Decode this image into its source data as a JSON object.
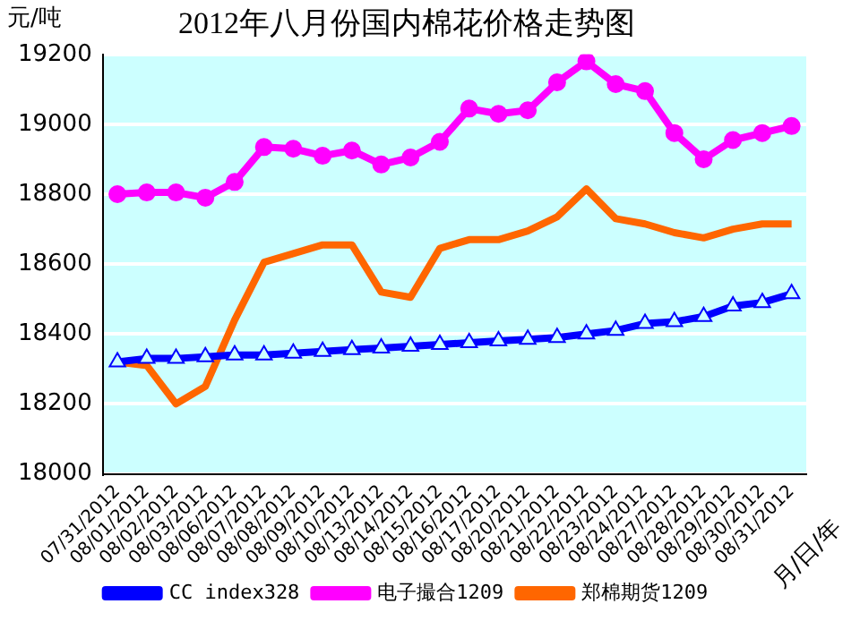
{
  "chart_data": {
    "type": "line",
    "title": "2012年八月份国内棉花价格走势图",
    "ylabel": "元/吨",
    "xlabel": "月/日/年",
    "categories": [
      "07/31/2012",
      "08/01/2012",
      "08/02/2012",
      "08/03/2012",
      "08/06/2012",
      "08/07/2012",
      "08/08/2012",
      "08/09/2012",
      "08/10/2012",
      "08/13/2012",
      "08/14/2012",
      "08/15/2012",
      "08/16/2012",
      "08/17/2012",
      "08/20/2012",
      "08/21/2012",
      "08/22/2012",
      "08/23/2012",
      "08/24/2012",
      "08/27/2012",
      "08/28/2012",
      "08/29/2012",
      "08/30/2012",
      "08/31/2012"
    ],
    "series": [
      {
        "name": "CC index328",
        "color": "#0000ff",
        "marker": "triangle",
        "values": [
          18320,
          18330,
          18330,
          18335,
          18340,
          18340,
          18345,
          18350,
          18355,
          18360,
          18365,
          18370,
          18375,
          18380,
          18385,
          18390,
          18400,
          18410,
          18430,
          18435,
          18450,
          18480,
          18490,
          18515
        ]
      },
      {
        "name": "电子撮合1209",
        "color": "#ff00ff",
        "marker": "circle",
        "values": [
          18800,
          18805,
          18805,
          18790,
          18835,
          18935,
          18930,
          18910,
          18925,
          18885,
          18905,
          18950,
          19045,
          19030,
          19040,
          19120,
          19180,
          19115,
          19095,
          18975,
          18900,
          18955,
          18975,
          18995
        ]
      },
      {
        "name": "郑棉期货1209",
        "color": "#ff6600",
        "marker": "none",
        "values": [
          18320,
          18310,
          18200,
          18250,
          18440,
          18605,
          18630,
          18655,
          18655,
          18520,
          18505,
          18645,
          18670,
          18670,
          18695,
          18735,
          18815,
          18730,
          18715,
          18690,
          18675,
          18700,
          18715,
          18715
        ]
      }
    ],
    "ylim": [
      18000,
      19200
    ],
    "yticks": [
      18000,
      18200,
      18400,
      18600,
      18800,
      19000,
      19200
    ],
    "grid": "y",
    "legend": "bottom"
  }
}
